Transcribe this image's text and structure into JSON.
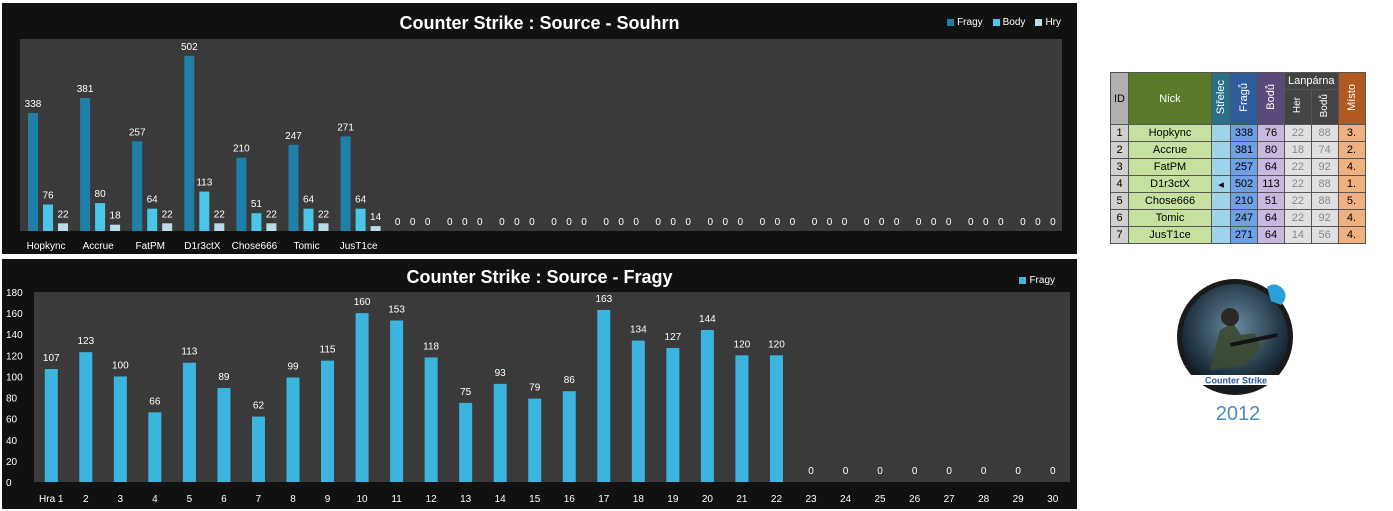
{
  "chart_data": [
    {
      "type": "bar",
      "title": "Counter Strike : Source - Souhrn",
      "categories": [
        "Hopkync",
        "Accrue",
        "FatPM",
        "D1r3ctX",
        "Chose666",
        "Tomic",
        "JusT1ce",
        "",
        "",
        "",
        "",
        "",
        "",
        "",
        "",
        "",
        "",
        "",
        "",
        ""
      ],
      "series": [
        {
          "name": "Fragy",
          "values": [
            338,
            381,
            257,
            502,
            210,
            247,
            271,
            0,
            0,
            0,
            0,
            0,
            0,
            0,
            0,
            0,
            0,
            0,
            0,
            0
          ]
        },
        {
          "name": "Body",
          "values": [
            76,
            80,
            64,
            113,
            51,
            64,
            64,
            0,
            0,
            0,
            0,
            0,
            0,
            0,
            0,
            0,
            0,
            0,
            0,
            0
          ]
        },
        {
          "name": "Hry",
          "values": [
            22,
            18,
            22,
            22,
            22,
            22,
            14,
            0,
            0,
            0,
            0,
            0,
            0,
            0,
            0,
            0,
            0,
            0,
            0,
            0
          ]
        }
      ],
      "ylim": [
        0,
        550
      ],
      "legend": "top-right",
      "colors": {
        "Fragy": "#1f7fa6",
        "Body": "#4ac6ea",
        "Hry": "#b8dcea"
      }
    },
    {
      "type": "bar",
      "title": "Counter Strike : Source - Fragy",
      "categories": [
        "Hra 1",
        "2",
        "3",
        "4",
        "5",
        "6",
        "7",
        "8",
        "9",
        "10",
        "11",
        "12",
        "13",
        "14",
        "15",
        "16",
        "17",
        "18",
        "19",
        "20",
        "21",
        "22",
        "23",
        "24",
        "25",
        "26",
        "27",
        "28",
        "29",
        "30"
      ],
      "series": [
        {
          "name": "Fragy",
          "values": [
            107,
            123,
            100,
            66,
            113,
            89,
            62,
            99,
            115,
            160,
            153,
            118,
            75,
            93,
            79,
            86,
            163,
            134,
            127,
            144,
            120,
            120,
            0,
            0,
            0,
            0,
            0,
            0,
            0,
            0
          ]
        }
      ],
      "yticks": [
        "0",
        "20",
        "40",
        "60",
        "80",
        "100",
        "120",
        "140",
        "160",
        "180"
      ],
      "ylim": [
        0,
        180
      ],
      "legend": "top-right",
      "colors": {
        "Fragy": "#3bb5dd"
      }
    }
  ],
  "table": {
    "headers": {
      "id": "ID",
      "nick": "Nick",
      "strelec": "Střelec",
      "fragu": "Fragů",
      "bodu": "Bodů",
      "lanparna": "Lanpárna",
      "her": "Her",
      "lbodu": "Bodů",
      "misto": "Místo"
    },
    "rows": [
      {
        "id": "1",
        "nick": "Hopkync",
        "strelec": "",
        "fragu": "338",
        "bodu": "76",
        "her": "22",
        "lbodu": "88",
        "misto": "3."
      },
      {
        "id": "2",
        "nick": "Accrue",
        "strelec": "",
        "fragu": "381",
        "bodu": "80",
        "her": "18",
        "lbodu": "74",
        "misto": "2."
      },
      {
        "id": "3",
        "nick": "FatPM",
        "strelec": "",
        "fragu": "257",
        "bodu": "64",
        "her": "22",
        "lbodu": "92",
        "misto": "4."
      },
      {
        "id": "4",
        "nick": "D1r3ctX",
        "strelec": "◂",
        "fragu": "502",
        "bodu": "113",
        "her": "22",
        "lbodu": "88",
        "misto": "1."
      },
      {
        "id": "5",
        "nick": "Chose666",
        "strelec": "",
        "fragu": "210",
        "bodu": "51",
        "her": "22",
        "lbodu": "88",
        "misto": "5."
      },
      {
        "id": "6",
        "nick": "Tomic",
        "strelec": "",
        "fragu": "247",
        "bodu": "64",
        "her": "22",
        "lbodu": "92",
        "misto": "4."
      },
      {
        "id": "7",
        "nick": "JusT1ce",
        "strelec": "",
        "fragu": "271",
        "bodu": "64",
        "her": "14",
        "lbodu": "56",
        "misto": "4."
      }
    ]
  },
  "logo": {
    "text": "Counter Strike",
    "year": "2012"
  }
}
